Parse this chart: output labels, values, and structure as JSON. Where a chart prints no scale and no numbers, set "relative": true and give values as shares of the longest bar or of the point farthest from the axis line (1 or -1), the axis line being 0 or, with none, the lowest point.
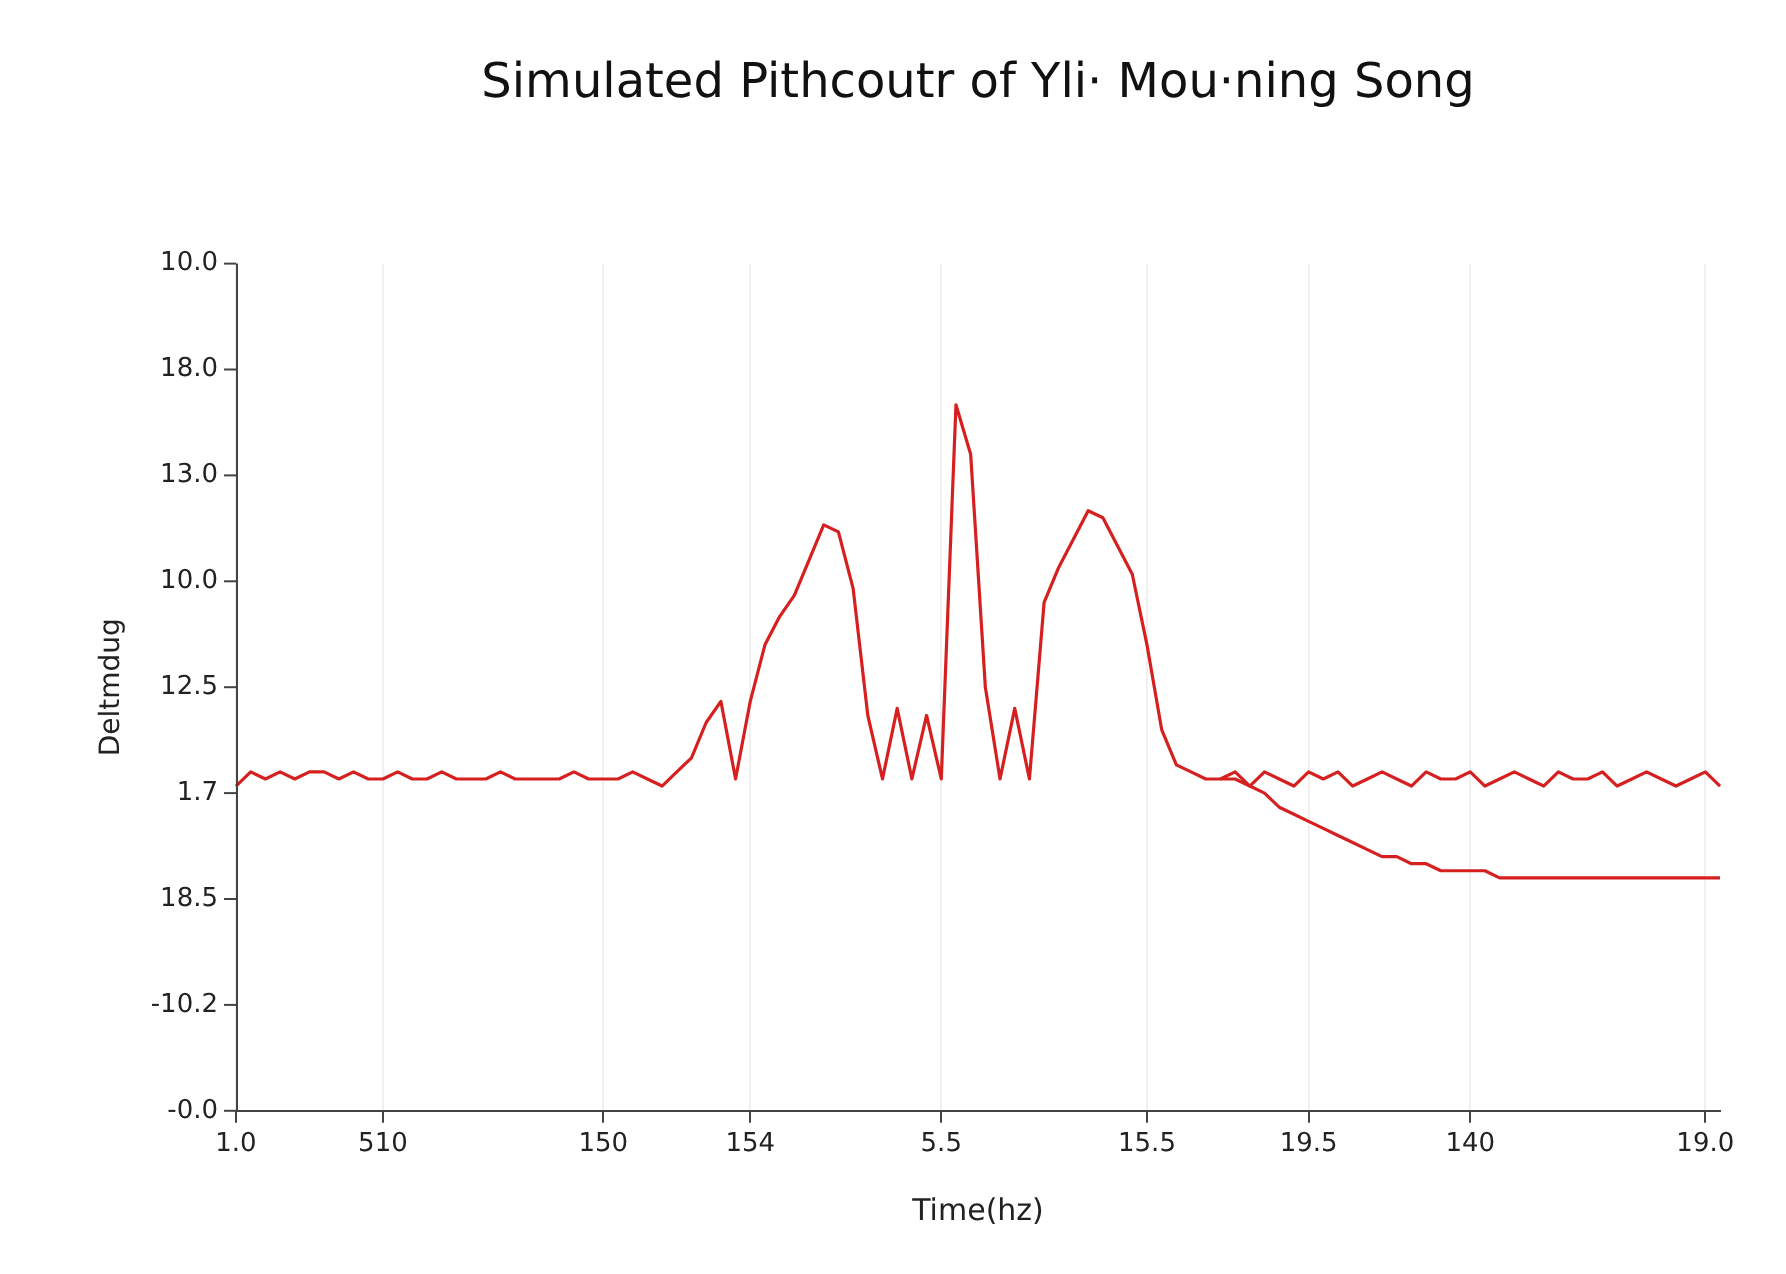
{
  "chart_data": {
    "type": "line",
    "title": "Simulated Pithcoutr of Yli· Mou·ning Song",
    "xlabel": "Time(hz)",
    "ylabel": "Deltmdug",
    "annotations": [
      "10.0",
      "18.0",
      "13.0",
      "10.0",
      "12.5",
      "1.7",
      "18.5",
      "-10.2",
      "-0.0"
    ],
    "categories": [
      "1.0",
      null,
      null,
      null,
      null,
      null,
      null,
      null,
      null,
      null,
      "510",
      null,
      null,
      null,
      null,
      null,
      null,
      null,
      null,
      null,
      null,
      null,
      null,
      null,
      null,
      "150",
      null,
      null,
      null,
      null,
      null,
      null,
      null,
      null,
      null,
      "154",
      null,
      null,
      null,
      null,
      null,
      null,
      null,
      null,
      null,
      null,
      null,
      null,
      "5.5",
      null,
      null,
      null,
      null,
      null,
      null,
      null,
      null,
      null,
      null,
      null,
      null,
      null,
      "15.5",
      null,
      null,
      null,
      null,
      null,
      null,
      null,
      null,
      null,
      null,
      "19.5",
      null,
      null,
      null,
      null,
      null,
      null,
      null,
      null,
      null,
      null,
      "140",
      null,
      null,
      null,
      null,
      null,
      null,
      null,
      null,
      null,
      null,
      null,
      null,
      null,
      null,
      null,
      "19.0",
      null
    ],
    "relative": true,
    "grid": "x",
    "marker": "none",
    "line_style": "solid",
    "series": [
      {
        "color": "#d62020",
        "values": [
          0.46,
          0.48,
          0.47,
          0.48,
          0.47,
          0.48,
          0.48,
          0.47,
          0.48,
          0.47,
          0.47,
          0.48,
          0.47,
          0.47,
          0.48,
          0.47,
          0.47,
          0.47,
          0.48,
          0.47,
          0.47,
          0.47,
          0.47,
          0.48,
          0.47,
          0.47,
          0.47,
          0.48,
          0.47,
          0.46,
          0.48,
          0.5,
          0.55,
          0.58,
          0.47,
          0.58,
          0.66,
          0.7,
          0.73,
          0.78,
          0.83,
          0.82,
          0.74,
          0.56,
          0.47,
          0.57,
          0.47,
          0.56,
          0.47,
          1.0,
          0.93,
          0.6,
          0.47,
          0.57,
          0.47,
          0.72,
          0.77,
          0.81,
          0.85,
          0.84,
          0.8,
          0.76,
          0.66,
          0.54,
          0.49,
          0.48,
          0.47,
          0.47,
          0.48,
          0.46,
          0.48,
          0.47,
          0.46,
          0.48,
          0.47,
          0.48,
          0.46,
          0.47,
          0.48,
          0.47,
          0.46,
          0.48,
          0.47,
          0.47,
          0.48,
          0.46,
          0.47,
          0.48,
          0.47,
          0.46,
          0.48,
          0.47,
          0.47,
          0.48,
          0.46,
          0.47,
          0.48,
          0.47,
          0.46,
          0.47,
          0.48,
          0.46
        ]
      },
      {
        "color": "#d62020",
        "values": [
          null,
          null,
          null,
          null,
          null,
          null,
          null,
          null,
          null,
          null,
          null,
          null,
          null,
          null,
          null,
          null,
          null,
          null,
          null,
          null,
          null,
          null,
          null,
          null,
          null,
          null,
          null,
          null,
          null,
          null,
          null,
          null,
          null,
          null,
          null,
          null,
          null,
          null,
          null,
          null,
          null,
          null,
          null,
          null,
          null,
          null,
          null,
          null,
          null,
          null,
          null,
          null,
          null,
          null,
          null,
          null,
          null,
          null,
          null,
          null,
          null,
          null,
          null,
          null,
          null,
          null,
          null,
          0.47,
          0.47,
          0.46,
          0.45,
          0.43,
          0.42,
          0.41,
          0.4,
          0.39,
          0.38,
          0.37,
          0.36,
          0.36,
          0.35,
          0.35,
          0.34,
          0.34,
          0.34,
          0.34,
          0.33,
          0.33,
          0.33,
          0.33,
          0.33,
          0.33,
          0.33,
          0.33,
          0.33,
          0.33,
          0.33,
          0.33,
          0.33,
          0.33,
          0.33,
          0.33
        ]
      }
    ]
  }
}
